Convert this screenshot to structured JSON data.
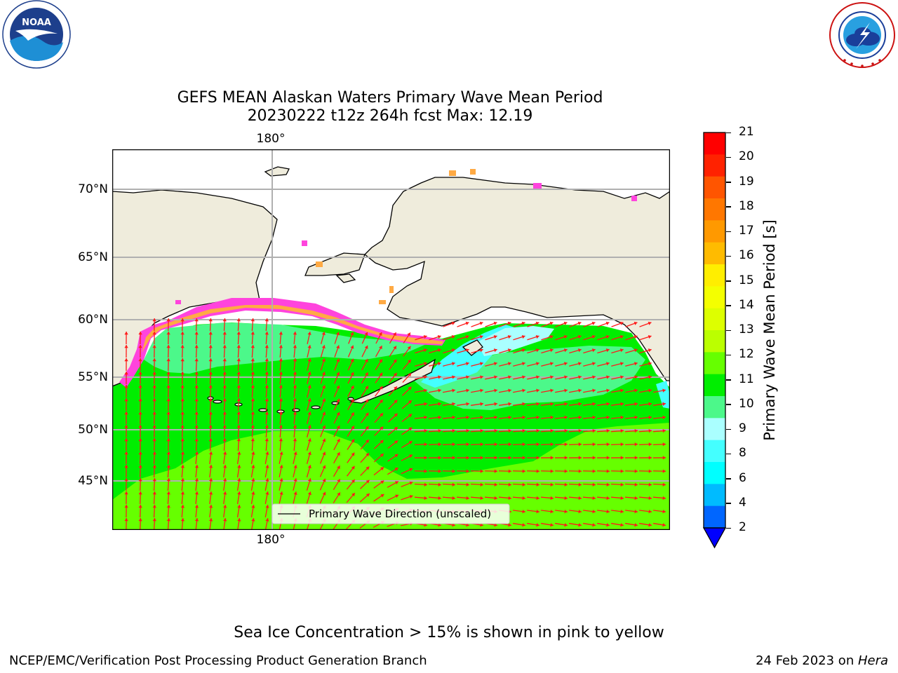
{
  "logos": {
    "noaa": {
      "text": "NOAA",
      "ring_text": "NATIONAL OCEANIC AND ATMOSPHERIC ADMINISTRATION · U.S. DEPARTMENT OF COMMERCE"
    },
    "nws": {
      "ring_text": "NATIONAL WEATHER SERVICE"
    }
  },
  "title": {
    "line1": "GEFS MEAN Alaskan Waters Primary Wave Mean Period",
    "line2": "20230222 t12z 264h fcst   Max: 12.19"
  },
  "map": {
    "region": "Alaskan Waters",
    "lon_label_top": "180°",
    "lon_label_bottom": "180°",
    "lat_labels": [
      "70°N",
      "65°N",
      "60°N",
      "55°N",
      "50°N",
      "45°N"
    ],
    "legend_label": "Primary Wave Direction (unscaled)",
    "colors": {
      "land": "#efecdc",
      "ocean_green": "#00ee00",
      "ocean_lightgreen": "#66ff00",
      "ocean_mint": "#4cf88a",
      "ocean_cyan": "#44ffff",
      "ocean_lightcyan": "#aaffff",
      "arrow": "#ff1a1a",
      "ice_pink": "#ff44dd",
      "ice_orange": "#ffaa44"
    }
  },
  "colorbar": {
    "label": "Primary Wave Mean Period [s]",
    "ticks": [
      "21",
      "20",
      "19",
      "18",
      "17",
      "16",
      "15",
      "14",
      "13",
      "12",
      "11",
      "10",
      "9",
      "8",
      "6",
      "4",
      "2"
    ],
    "colors_top_to_bottom": [
      "#ff0000",
      "#ff2200",
      "#ff5500",
      "#ff7700",
      "#ff9900",
      "#ffbb00",
      "#ffee00",
      "#f4ff00",
      "#ddff00",
      "#bbff00",
      "#66ff00",
      "#00ee00",
      "#4cf88a",
      "#aaffff",
      "#44ffff",
      "#00ffff",
      "#00bbff",
      "#0066ff"
    ],
    "extend_color": "#0000ff"
  },
  "footer": {
    "note": "Sea Ice Concentration > 15% is shown in pink to yellow",
    "left": "NCEP/EMC/Verification Post Processing Product Generation Branch",
    "date": "24 Feb 2023 on ",
    "host": "Hera"
  }
}
